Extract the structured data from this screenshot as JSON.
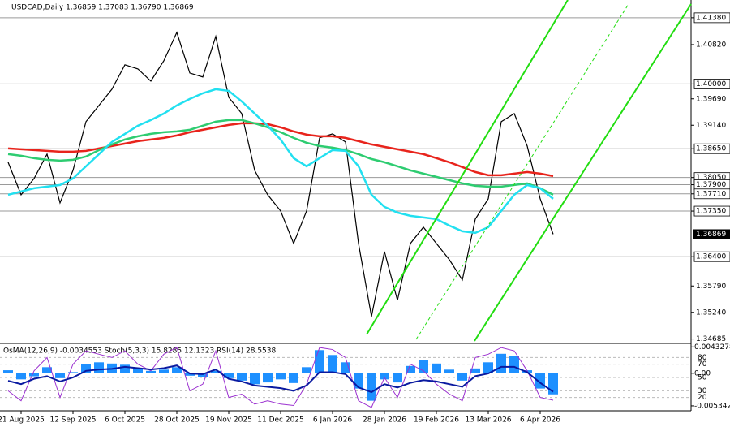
{
  "chart_data": [
    {
      "type": "line",
      "title": "USDCAD,Daily  1.36859 1.37083 1.36790 1.36869",
      "categories": [
        null,
        "21 Aug 2025",
        null,
        null,
        null,
        "12 Sep 2025",
        null,
        null,
        null,
        "6 Oct 2025",
        null,
        null,
        null,
        "28 Oct 2025",
        null,
        null,
        null,
        "19 Nov 2025",
        null,
        null,
        null,
        "11 Dec 2025",
        null,
        null,
        null,
        "6 Jan 2026",
        null,
        null,
        null,
        "28 Jan 2026",
        null,
        null,
        null,
        "19 Feb 2026",
        null,
        null,
        null,
        "13 Mar 2026",
        null,
        null,
        null,
        "6 Apr 2026",
        null
      ],
      "series": [
        {
          "color": "#000000",
          "values": [
            1.38368,
            1.37691,
            1.3803,
            1.38537,
            1.37522,
            1.38199,
            1.39214,
            1.39553,
            1.39891,
            1.40399,
            1.40314,
            1.4006,
            1.40483,
            1.41075,
            1.40229,
            1.40145,
            1.40991,
            1.39722,
            1.39383,
            1.38199,
            1.37691,
            1.37353,
            1.36676,
            1.37353,
            1.38876,
            1.3896,
            1.38791,
            1.36676,
            1.35153,
            1.36507,
            1.35492,
            1.36676,
            1.37015,
            1.36676,
            1.36338,
            1.35915,
            1.37184,
            1.37607,
            1.39214,
            1.39383,
            1.38707,
            1.37607,
            1.36869
          ]
        },
        {
          "color": "#e8241c",
          "values": [
            1.38656,
            1.38639,
            1.38622,
            1.38605,
            1.38588,
            1.38588,
            1.38605,
            1.38656,
            1.38707,
            1.38757,
            1.38808,
            1.38842,
            1.38876,
            1.38927,
            1.38994,
            1.39045,
            1.39096,
            1.39147,
            1.3918,
            1.3918,
            1.39163,
            1.39096,
            1.39011,
            1.38944,
            1.3891,
            1.3891,
            1.38876,
            1.38808,
            1.3874,
            1.3869,
            1.38639,
            1.38588,
            1.38537,
            1.38453,
            1.38368,
            1.38267,
            1.38165,
            1.38098,
            1.38098,
            1.38131,
            1.38165,
            1.38131,
            1.38081
          ]
        },
        {
          "color": "#2ecc71",
          "values": [
            1.38537,
            1.38504,
            1.38453,
            1.38419,
            1.38402,
            1.38419,
            1.38487,
            1.38622,
            1.3874,
            1.38842,
            1.3891,
            1.3896,
            1.38994,
            1.39011,
            1.39045,
            1.3913,
            1.39214,
            1.39248,
            1.39248,
            1.3918,
            1.39096,
            1.38994,
            1.38876,
            1.38774,
            1.38707,
            1.38673,
            1.38622,
            1.38537,
            1.38436,
            1.38368,
            1.38284,
            1.38199,
            1.38131,
            1.38064,
            1.37996,
            1.37928,
            1.37878,
            1.37861,
            1.37861,
            1.37894,
            1.37928,
            1.37827,
            1.37691
          ]
        },
        {
          "color": "#22e0f0",
          "values": [
            1.37691,
            1.37759,
            1.37827,
            1.37861,
            1.37894,
            1.3803,
            1.38284,
            1.38537,
            1.38791,
            1.3896,
            1.3913,
            1.39248,
            1.39383,
            1.39553,
            1.39688,
            1.39806,
            1.39891,
            1.39857,
            1.39637,
            1.39383,
            1.3913,
            1.38842,
            1.38453,
            1.38284,
            1.38453,
            1.38622,
            1.38605,
            1.38284,
            1.37691,
            1.37438,
            1.37319,
            1.37252,
            1.37218,
            1.37184,
            1.37048,
            1.3693,
            1.36896,
            1.37015,
            1.37353,
            1.37691,
            1.37894,
            1.37827,
            1.37607
          ]
        }
      ],
      "ylim": [
        1.3461,
        1.4175
      ],
      "yticks": [
        {
          "value": 1.4138,
          "label": "1.41380",
          "level": true
        },
        {
          "value": 1.4082,
          "label": "1.40820"
        },
        {
          "value": 1.4,
          "label": "1.40000",
          "level": true
        },
        {
          "value": 1.3969,
          "label": "1.39690"
        },
        {
          "value": 1.3914,
          "label": "1.39140"
        },
        {
          "value": 1.3865,
          "label": "1.38650",
          "level": true
        },
        {
          "value": 1.3805,
          "label": "1.38050",
          "level": true
        },
        {
          "value": 1.379,
          "label": "1.37900",
          "level": true
        },
        {
          "value": 1.3771,
          "label": "1.37710",
          "level": true
        },
        {
          "value": 1.3735,
          "label": "1.37350",
          "level": true
        },
        {
          "value": 1.364,
          "label": "1.36400",
          "level": true
        },
        {
          "value": 1.3579,
          "label": "1.35790"
        },
        {
          "value": 1.3524,
          "label": "1.35240"
        },
        {
          "value": 1.34685,
          "label": "1.34685"
        }
      ],
      "last": 1.36869
    },
    {
      "type": "oscillator",
      "title": "OsMA(12,26,9) -0.0034553  Stoch(5,3,3) 15.8285 12.1323  RSI(14) 28.5538",
      "series": [
        {
          "type": "bar",
          "axis": "y2",
          "color": "#1e90ff",
          "values": [
            0.0005,
            -0.001,
            -0.0005,
            0.001,
            -0.0008,
            0.0002,
            0.0015,
            0.0018,
            0.0016,
            0.0014,
            0.0008,
            0.0004,
            0.0006,
            0.001,
            -0.0004,
            -0.0006,
            0.0004,
            -0.0008,
            -0.0012,
            -0.0018,
            -0.0015,
            -0.001,
            -0.0016,
            0.001,
            0.0038,
            0.003,
            0.0018,
            -0.0025,
            -0.0045,
            -0.001,
            -0.0015,
            0.0012,
            0.0022,
            0.0016,
            0.0006,
            -0.0012,
            0.0008,
            0.0018,
            0.0032,
            0.0028,
            0.0005,
            -0.0025,
            -0.0034553
          ]
        },
        {
          "type": "line",
          "color": "#9b30d0",
          "values": [
            30,
            15,
            60,
            80,
            20,
            70,
            90,
            85,
            80,
            90,
            70,
            60,
            85,
            95,
            30,
            40,
            90,
            20,
            25,
            10,
            15,
            10,
            8,
            40,
            95,
            92,
            80,
            15,
            5,
            50,
            20,
            70,
            60,
            40,
            25,
            15,
            80,
            85,
            95,
            90,
            60,
            20,
            15.8285
          ]
        },
        {
          "type": "line",
          "color": "#0a1aa0",
          "values": [
            45,
            40,
            48,
            52,
            44,
            50,
            60,
            62,
            63,
            66,
            64,
            62,
            64,
            68,
            56,
            55,
            62,
            48,
            44,
            38,
            36,
            34,
            30,
            38,
            58,
            58,
            55,
            35,
            28,
            40,
            35,
            42,
            46,
            44,
            40,
            36,
            52,
            56,
            66,
            66,
            58,
            42,
            28.5538
          ]
        }
      ],
      "ylim": [
        0,
        100
      ],
      "yticks": [
        80,
        70,
        50,
        30,
        20
      ],
      "y2lim": [
        -0.0061483,
        0.004771
      ],
      "y2ticks": [
        0.0043278,
        {
          "value": 0,
          "label": "0.00"
        },
        -0.0053424
      ]
    }
  ]
}
